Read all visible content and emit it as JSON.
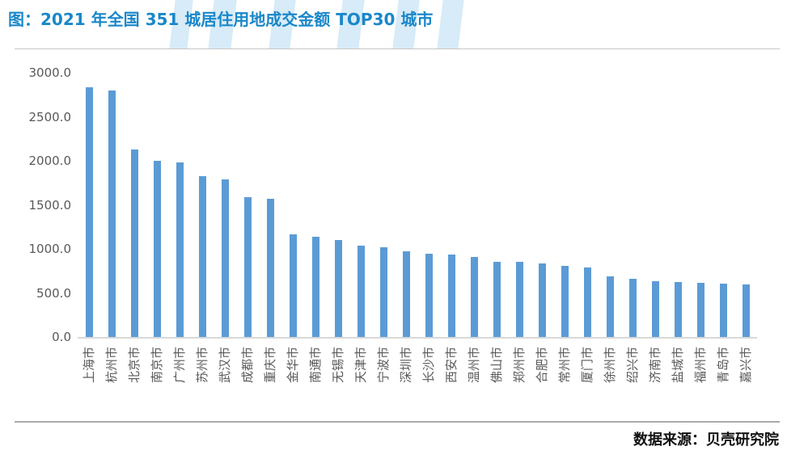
{
  "title": "图：2021 年全国 351 城居住用地成交金额 TOP30 城市",
  "footer": {
    "source_label": "数据来源：贝壳研究院"
  },
  "colors": {
    "title_blue": "#1a87c9",
    "bar_blue": "#5b9bd5",
    "axis_line_gray": "#d9d9d9",
    "tick_text_gray": "#595959",
    "watermark_blue": "#d7ebf8"
  },
  "chart_data": {
    "type": "bar",
    "title": "2021 年全国 351 城居住用地成交金额 TOP30 城市",
    "xlabel": "",
    "ylabel": "",
    "ylim": [
      0,
      3000
    ],
    "ytick_step": 500,
    "ytick_labels": [
      "0.0",
      "500.0",
      "1000.0",
      "1500.0",
      "2000.0",
      "2500.0",
      "3000.0"
    ],
    "grid": false,
    "legend": false,
    "bar_color": "#5b9bd5",
    "categories": [
      "上海市",
      "杭州市",
      "北京市",
      "南京市",
      "广州市",
      "苏州市",
      "武汉市",
      "成都市",
      "重庆市",
      "金华市",
      "南通市",
      "无锡市",
      "天津市",
      "宁波市",
      "深圳市",
      "长沙市",
      "西安市",
      "温州市",
      "佛山市",
      "郑州市",
      "合肥市",
      "常州市",
      "厦门市",
      "徐州市",
      "绍兴市",
      "济南市",
      "盐城市",
      "福州市",
      "青岛市",
      "嘉兴市"
    ],
    "values": [
      2835,
      2800,
      2130,
      2005,
      1985,
      1830,
      1785,
      1590,
      1570,
      1170,
      1140,
      1105,
      1035,
      1015,
      970,
      945,
      935,
      905,
      855,
      850,
      835,
      805,
      790,
      690,
      665,
      630,
      620,
      613,
      605,
      597
    ]
  }
}
